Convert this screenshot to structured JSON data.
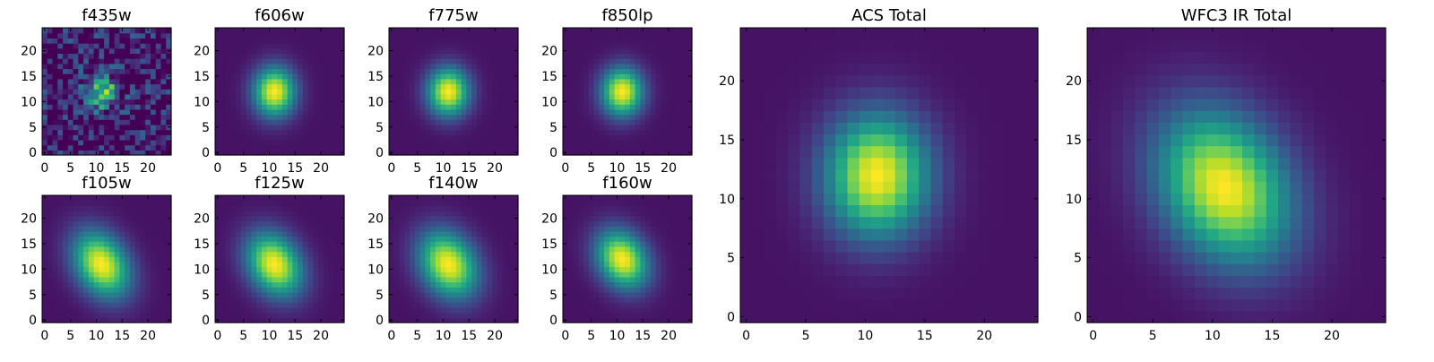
{
  "chart_data": [
    {
      "type": "heatmap",
      "title": "f435w",
      "ticks": [
        0,
        5,
        10,
        15,
        20
      ],
      "xlim": [
        0,
        25
      ],
      "ylim": [
        0,
        25
      ],
      "center": [
        11,
        12
      ],
      "sigma": [
        2.2,
        2.6
      ],
      "rotation_deg": 0,
      "noise": 0.55,
      "colormap": "viridis"
    },
    {
      "type": "heatmap",
      "title": "f606w",
      "ticks": [
        0,
        5,
        10,
        15,
        20
      ],
      "xlim": [
        0,
        25
      ],
      "ylim": [
        0,
        25
      ],
      "center": [
        11,
        12
      ],
      "sigma": [
        2.8,
        3.4
      ],
      "rotation_deg": 0,
      "noise": 0.0,
      "colormap": "viridis"
    },
    {
      "type": "heatmap",
      "title": "f775w",
      "ticks": [
        0,
        5,
        10,
        15,
        20
      ],
      "xlim": [
        0,
        25
      ],
      "ylim": [
        0,
        25
      ],
      "center": [
        11,
        12
      ],
      "sigma": [
        2.8,
        3.3
      ],
      "rotation_deg": 0,
      "noise": 0.0,
      "colormap": "viridis"
    },
    {
      "type": "heatmap",
      "title": "f850lp",
      "ticks": [
        0,
        5,
        10,
        15,
        20
      ],
      "xlim": [
        0,
        25
      ],
      "ylim": [
        0,
        25
      ],
      "center": [
        11,
        12
      ],
      "sigma": [
        2.8,
        3.3
      ],
      "rotation_deg": 0,
      "noise": 0.0,
      "colormap": "viridis"
    },
    {
      "type": "heatmap",
      "title": "f105w",
      "ticks": [
        0,
        5,
        10,
        15,
        20
      ],
      "xlim": [
        0,
        25
      ],
      "ylim": [
        0,
        25
      ],
      "center": [
        11,
        11
      ],
      "sigma": [
        3.4,
        4.8
      ],
      "rotation_deg": 30,
      "noise": 0.0,
      "colormap": "viridis"
    },
    {
      "type": "heatmap",
      "title": "f125w",
      "ticks": [
        0,
        5,
        10,
        15,
        20
      ],
      "xlim": [
        0,
        25
      ],
      "ylim": [
        0,
        25
      ],
      "center": [
        11,
        11
      ],
      "sigma": [
        3.4,
        4.6
      ],
      "rotation_deg": 30,
      "noise": 0.0,
      "colormap": "viridis"
    },
    {
      "type": "heatmap",
      "title": "f140w",
      "ticks": [
        0,
        5,
        10,
        15,
        20
      ],
      "xlim": [
        0,
        25
      ],
      "ylim": [
        0,
        25
      ],
      "center": [
        11,
        11
      ],
      "sigma": [
        3.6,
        4.8
      ],
      "rotation_deg": 30,
      "noise": 0.0,
      "colormap": "viridis"
    },
    {
      "type": "heatmap",
      "title": "f160w",
      "ticks": [
        0,
        5,
        10,
        15,
        20
      ],
      "xlim": [
        0,
        25
      ],
      "ylim": [
        0,
        25
      ],
      "center": [
        11,
        12
      ],
      "sigma": [
        3.2,
        4.2
      ],
      "rotation_deg": 30,
      "noise": 0.0,
      "colormap": "viridis"
    },
    {
      "type": "heatmap",
      "title": "ACS Total",
      "ticks": [
        0,
        5,
        10,
        15,
        20
      ],
      "xlim": [
        0,
        25
      ],
      "ylim": [
        0,
        25
      ],
      "center": [
        11,
        12
      ],
      "sigma": [
        3.0,
        3.6
      ],
      "rotation_deg": 0,
      "noise": 0.0,
      "colormap": "viridis"
    },
    {
      "type": "heatmap",
      "title": "WFC3 IR Total",
      "ticks": [
        0,
        5,
        10,
        15,
        20
      ],
      "xlim": [
        0,
        25
      ],
      "ylim": [
        0,
        25
      ],
      "center": [
        11,
        11
      ],
      "sigma": [
        3.5,
        4.7
      ],
      "rotation_deg": 30,
      "noise": 0.0,
      "colormap": "viridis"
    }
  ]
}
